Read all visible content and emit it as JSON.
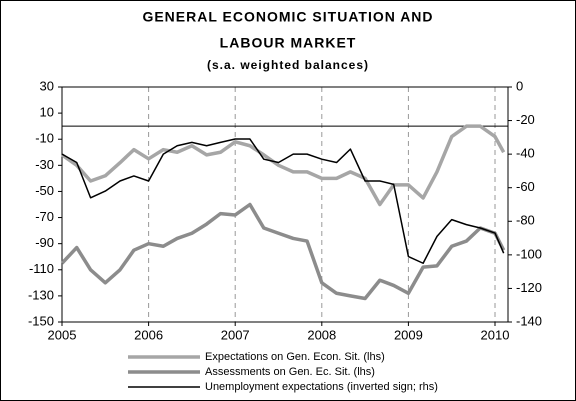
{
  "chart_data": {
    "type": "line",
    "title": [
      "GENERAL ECONOMIC SITUATION AND",
      "LABOUR MARKET"
    ],
    "subtitle": "(s.a. weighted balances)",
    "x": [
      2005,
      2005.17,
      2005.33,
      2005.5,
      2005.67,
      2005.83,
      2006,
      2006.17,
      2006.33,
      2006.5,
      2006.67,
      2006.83,
      2007,
      2007.17,
      2007.33,
      2007.5,
      2007.67,
      2007.83,
      2008,
      2008.17,
      2008.33,
      2008.5,
      2008.67,
      2008.83,
      2009,
      2009.17,
      2009.33,
      2009.5,
      2009.67,
      2009.83,
      2010,
      2010.1
    ],
    "series": [
      {
        "name": "Expectations on Gen. Econ. Sit. (lhs)",
        "color": "#a6a6a6",
        "values": [
          -22,
          -30,
          -42,
          -38,
          -28,
          -18,
          -25,
          -18,
          -20,
          -15,
          -22,
          -20,
          -12,
          -15,
          -22,
          -30,
          -35,
          -35,
          -40,
          -40,
          -35,
          -40,
          -60,
          -45,
          -45,
          -55,
          -35,
          -8,
          0,
          0,
          -8,
          -20
        ]
      },
      {
        "name": "Assessments on Gen. Ec. Sit. (lhs)",
        "color": "#8c8c8c",
        "values": [
          -105,
          -93,
          -110,
          -120,
          -110,
          -95,
          -90,
          -92,
          -86,
          -82,
          -75,
          -67,
          -68,
          -60,
          -78,
          -82,
          -86,
          -88,
          -120,
          -128,
          -130,
          -132,
          -118,
          -122,
          -128,
          -108,
          -107,
          -92,
          -88,
          -78,
          -82,
          -95
        ]
      },
      {
        "name": "Unemployment expectations (inverted sign; rhs)",
        "color": "#000000",
        "axis": "y2",
        "values": [
          -40,
          -45,
          -66,
          -62,
          -56,
          -53,
          -56,
          -40,
          -35,
          -33,
          -35,
          -33,
          -31,
          -31,
          -43,
          -45,
          -40,
          -40,
          -43,
          -45,
          -37,
          -56,
          -56,
          -58,
          -101,
          -105,
          -89,
          -79,
          -82,
          -84,
          -87,
          -99
        ]
      }
    ],
    "xlim": [
      2005,
      2010.15
    ],
    "xticks": [
      2005,
      2006,
      2007,
      2008,
      2009,
      2010
    ],
    "ylim": [
      -150,
      30
    ],
    "yticks": [
      30,
      10,
      -10,
      -30,
      -50,
      -70,
      -90,
      -110,
      -130,
      -150
    ],
    "y2lim": [
      -140,
      0
    ],
    "y2ticks": [
      0,
      -20,
      -40,
      -60,
      -80,
      -100,
      -120,
      -140
    ],
    "grid": true,
    "zero_line": true,
    "legend": "bottom"
  }
}
